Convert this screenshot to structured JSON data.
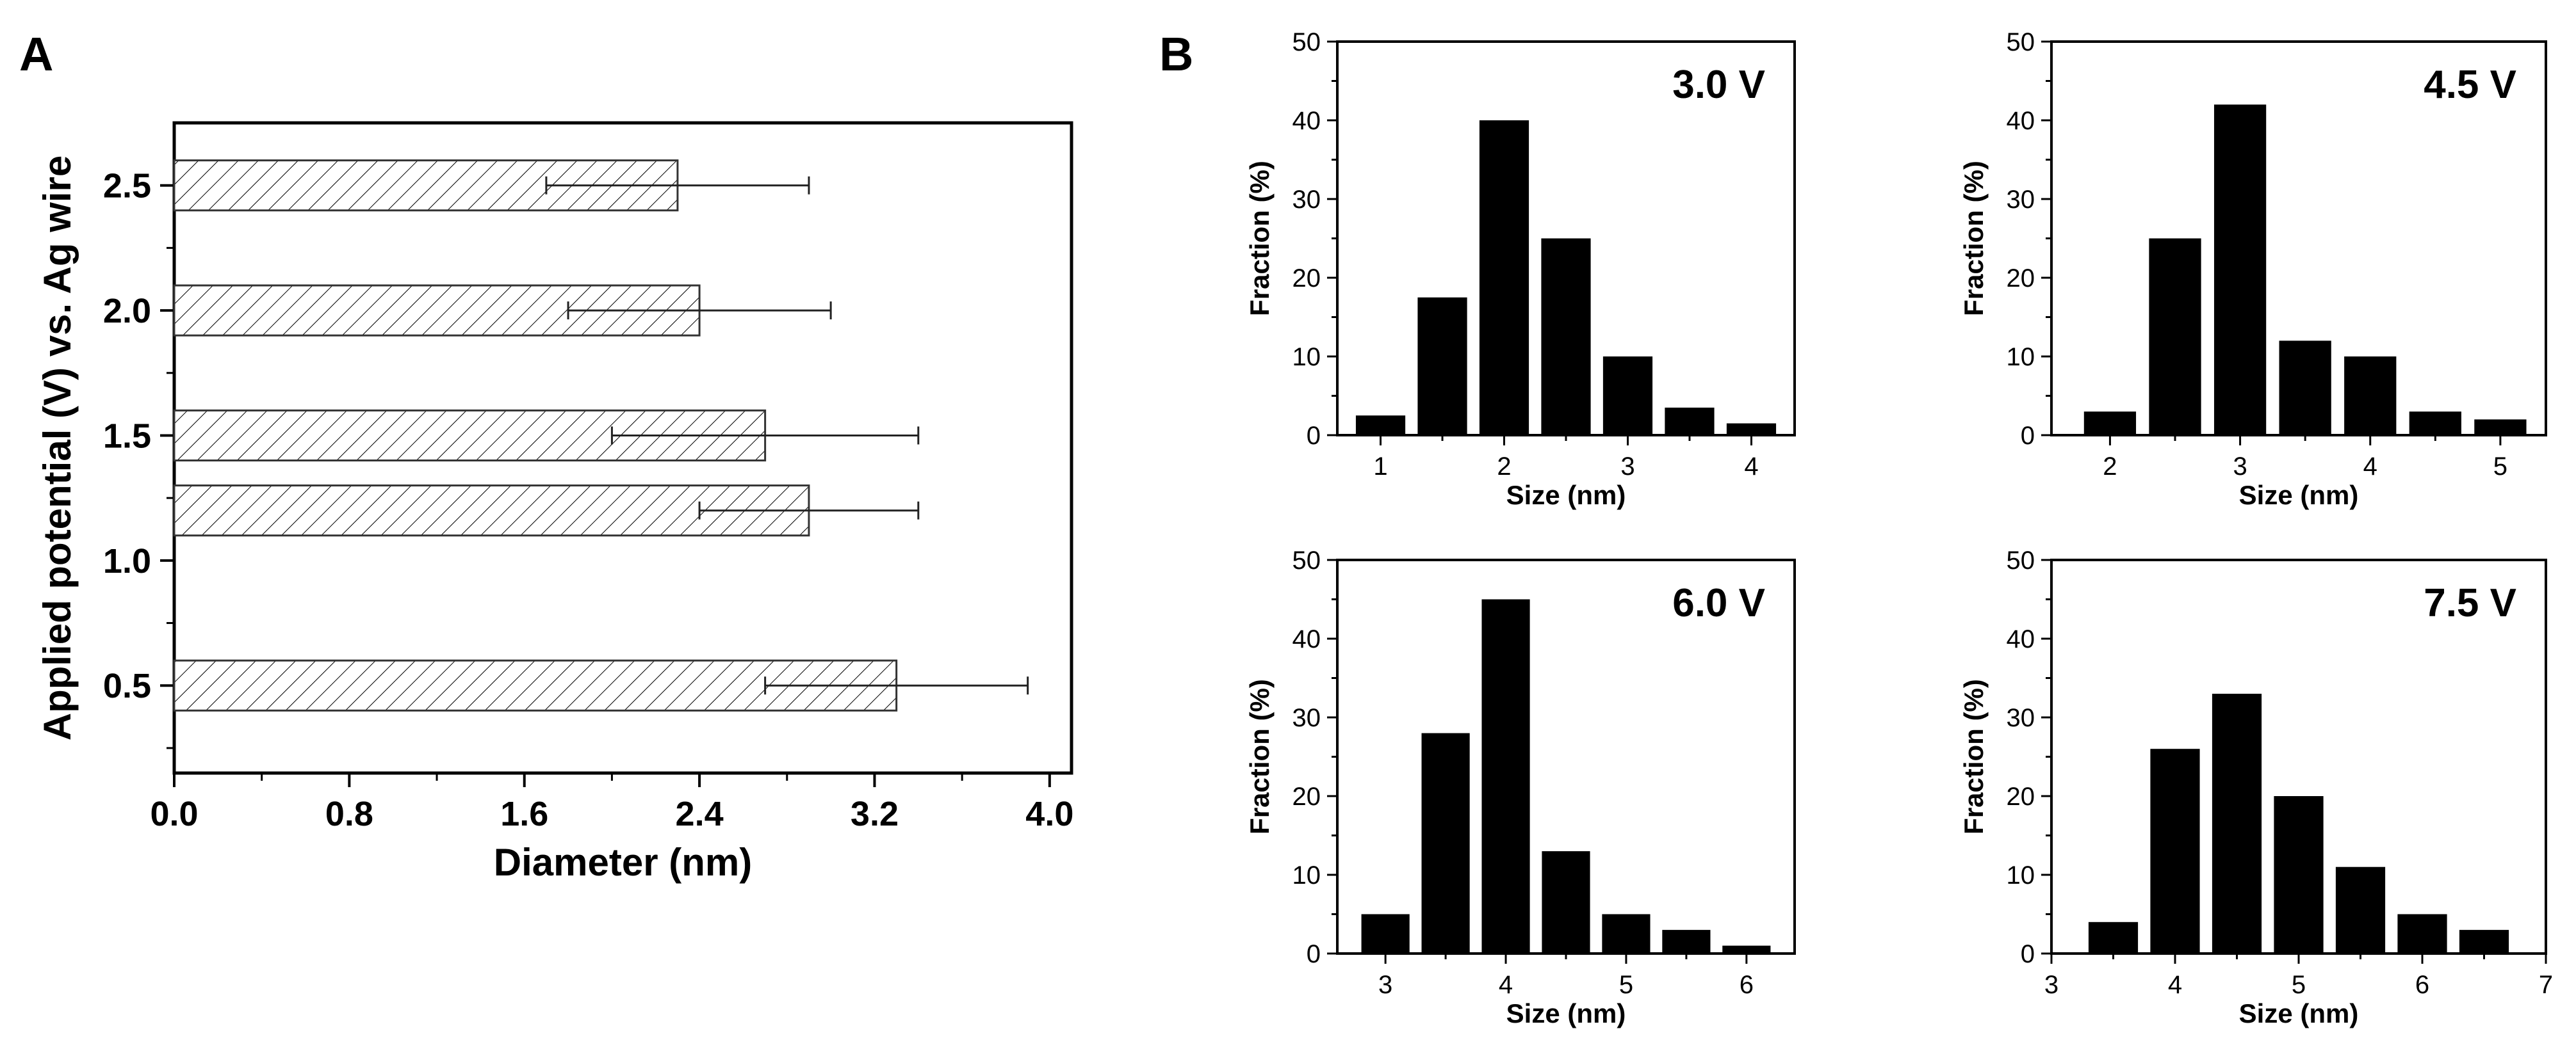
{
  "panel_labels": {
    "a": "A",
    "b": "B"
  },
  "colors": {
    "ink": "#000000",
    "background": "#ffffff"
  },
  "chart_data": [
    {
      "id": "A",
      "type": "bar",
      "orientation": "horizontal",
      "pattern": "diagonal-hatch",
      "xlabel": "Diameter (nm)",
      "ylabel": "Applied potential (V) vs. Ag wire",
      "xlim": [
        0.0,
        4.1
      ],
      "ylim": [
        0.15,
        2.75
      ],
      "xticks": [
        "0.0",
        "0.8",
        "1.6",
        "2.4",
        "3.2",
        "4.0"
      ],
      "yticks": [
        "0.5",
        "1.0",
        "1.5",
        "2.0",
        "2.5"
      ],
      "bars": [
        {
          "y": 0.5,
          "value": 3.3,
          "error_low": 2.7,
          "error_high": 3.9
        },
        {
          "y": 1.2,
          "value": 2.9,
          "error_low": 2.4,
          "error_high": 3.4
        },
        {
          "y": 1.5,
          "value": 2.7,
          "error_low": 2.0,
          "error_high": 3.4
        },
        {
          "y": 2.0,
          "value": 2.4,
          "error_low": 1.8,
          "error_high": 3.0
        },
        {
          "y": 2.5,
          "value": 2.3,
          "error_low": 1.7,
          "error_high": 2.9
        }
      ]
    },
    {
      "id": "B-3.0V",
      "type": "bar",
      "annotation": "3.0 V",
      "xlabel": "Size (nm)",
      "ylabel": "Fraction (%)",
      "xlim": [
        0.65,
        4.35
      ],
      "ylim": [
        0,
        50
      ],
      "xticks": [
        "1",
        "2",
        "3",
        "4"
      ],
      "yticks": [
        "0",
        "10",
        "20",
        "30",
        "40",
        "50"
      ],
      "bin_width": 0.4,
      "x": [
        1.0,
        1.5,
        2.0,
        2.5,
        3.0,
        3.5,
        4.0
      ],
      "values": [
        2.5,
        17.5,
        40,
        25,
        10,
        3.5,
        1.5
      ]
    },
    {
      "id": "B-4.5V",
      "type": "bar",
      "annotation": "4.5 V",
      "xlabel": "Size (nm)",
      "ylabel": "Fraction (%)",
      "xlim": [
        1.55,
        5.35
      ],
      "ylim": [
        0,
        50
      ],
      "xticks": [
        "2",
        "3",
        "4",
        "5"
      ],
      "yticks": [
        "0",
        "10",
        "20",
        "30",
        "40",
        "50"
      ],
      "bin_width": 0.4,
      "x": [
        2.0,
        2.5,
        3.0,
        3.5,
        4.0,
        4.5,
        5.0
      ],
      "values": [
        3,
        25,
        42,
        12,
        10,
        3,
        2
      ]
    },
    {
      "id": "B-6.0V",
      "type": "bar",
      "annotation": "6.0 V",
      "xlabel": "Size (nm)",
      "ylabel": "Fraction (%)",
      "xlim": [
        2.6,
        6.4
      ],
      "ylim": [
        0,
        50
      ],
      "xticks": [
        "3",
        "4",
        "5",
        "6"
      ],
      "yticks": [
        "0",
        "10",
        "20",
        "30",
        "40",
        "50"
      ],
      "bin_width": 0.4,
      "x": [
        3.0,
        3.5,
        4.0,
        4.5,
        5.0,
        5.5,
        6.0
      ],
      "values": [
        5,
        28,
        45,
        13,
        5,
        3,
        1
      ]
    },
    {
      "id": "B-7.5V",
      "type": "bar",
      "annotation": "7.5 V",
      "xlabel": "Size (nm)",
      "ylabel": "Fraction (%)",
      "xlim": [
        3.0,
        7.0
      ],
      "ylim": [
        0,
        50
      ],
      "xticks": [
        "3",
        "4",
        "5",
        "6",
        "7"
      ],
      "yticks": [
        "0",
        "10",
        "20",
        "30",
        "40",
        "50"
      ],
      "bin_width": 0.4,
      "x": [
        3.5,
        4.0,
        4.5,
        5.0,
        5.5,
        6.0,
        6.5
      ],
      "values": [
        4,
        26,
        33,
        20,
        11,
        5,
        3
      ]
    }
  ]
}
